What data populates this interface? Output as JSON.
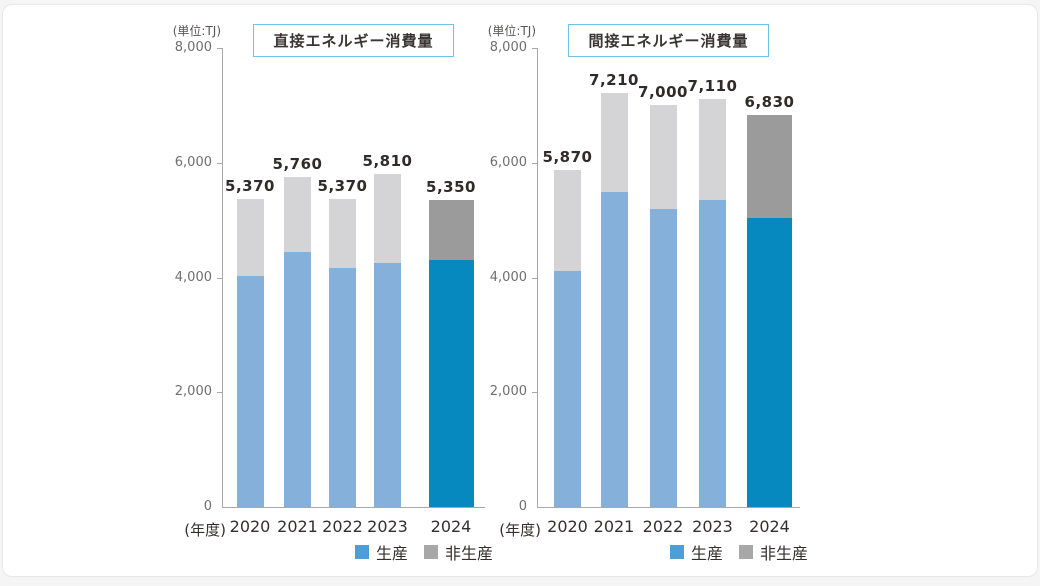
{
  "colors": {
    "production": "#85b0da",
    "production_highlight": "#0689be",
    "nonproduction": "#d4d4d6",
    "nonproduction_highlight": "#9b9b9b",
    "legend_production": "#4d9ed6",
    "legend_nonproduction": "#a8a8a8",
    "title_border": "#6cc4e6",
    "axis": "#a9a9a9",
    "text_dark": "#352f2f",
    "text_gray": "#6f6f6f"
  },
  "chart_data": [
    {
      "type": "bar",
      "stacked": true,
      "title": "直接エネルギー消費量",
      "unit_label": "(単位:TJ)",
      "xaxis_label": "(年度)",
      "categories": [
        "2020",
        "2021",
        "2022",
        "2023",
        "2024"
      ],
      "series": [
        {
          "name": "生産",
          "values": [
            4020,
            4440,
            4170,
            4250,
            4300
          ]
        },
        {
          "name": "非生産",
          "values": [
            1350,
            1320,
            1200,
            1560,
            1050
          ]
        }
      ],
      "totals": [
        5370,
        5760,
        5370,
        5810,
        5350
      ],
      "total_labels": [
        "5,370",
        "5,760",
        "5,370",
        "5,810",
        "5,350"
      ],
      "ylim": [
        0,
        8000
      ],
      "yticks": [
        0,
        2000,
        4000,
        6000,
        8000
      ],
      "ytick_labels": [
        "0",
        "2,000",
        "4,000",
        "6,000",
        "8,000"
      ],
      "legend": [
        "生産",
        "非生産"
      ],
      "highlight_category": "2024",
      "series_values_estimated_from_pixels": true
    },
    {
      "type": "bar",
      "stacked": true,
      "title": "間接エネルギー消費量",
      "unit_label": "(単位:TJ)",
      "xaxis_label": "(年度)",
      "categories": [
        "2020",
        "2021",
        "2022",
        "2023",
        "2024"
      ],
      "series": [
        {
          "name": "生産",
          "values": [
            4120,
            5490,
            5200,
            5350,
            5030
          ]
        },
        {
          "name": "非生産",
          "values": [
            1750,
            1720,
            1800,
            1760,
            1800
          ]
        }
      ],
      "totals": [
        5870,
        7210,
        7000,
        7110,
        6830
      ],
      "total_labels": [
        "5,870",
        "7,210",
        "7,000",
        "7,110",
        "6,830"
      ],
      "ylim": [
        0,
        8000
      ],
      "yticks": [
        0,
        2000,
        4000,
        6000,
        8000
      ],
      "ytick_labels": [
        "0",
        "2,000",
        "4,000",
        "6,000",
        "8,000"
      ],
      "legend": [
        "生産",
        "非生産"
      ],
      "highlight_category": "2024",
      "series_values_estimated_from_pixels": true
    }
  ]
}
